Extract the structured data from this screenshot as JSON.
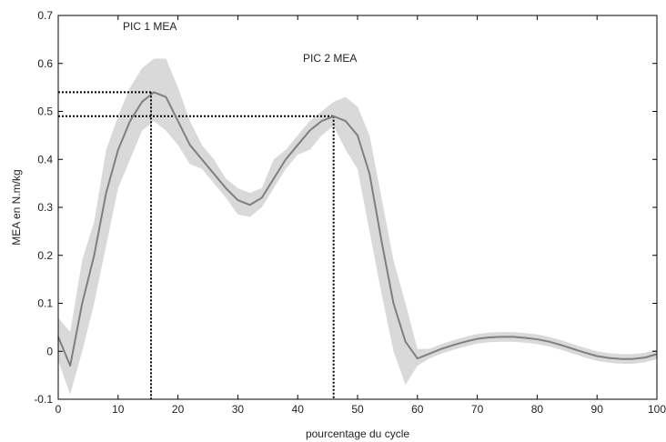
{
  "chart_data": {
    "type": "line",
    "title": "",
    "xlabel": "pourcentage du cycle",
    "ylabel": "MEA en N.m/kg",
    "xlim": [
      0,
      100
    ],
    "ylim": [
      -0.1,
      0.7
    ],
    "xticks": [
      0,
      10,
      20,
      30,
      40,
      50,
      60,
      70,
      80,
      90,
      100
    ],
    "yticks": [
      -0.1,
      0,
      0.1,
      0.2,
      0.3,
      0.4,
      0.5,
      0.6,
      0.7
    ],
    "grid": false,
    "legend": "none",
    "colors": {
      "mean_line": "#7f7f7f",
      "band": "#d9d9d9",
      "axes": "#000000",
      "reference": "#000000"
    },
    "series": [
      {
        "x": [
          0,
          2,
          4,
          6,
          8,
          10,
          12,
          14,
          16,
          18,
          20,
          22,
          24,
          26,
          28,
          30,
          32,
          34,
          36,
          38,
          40,
          42,
          44,
          46,
          48,
          50,
          52,
          54,
          56,
          58,
          60,
          62,
          64,
          66,
          68,
          70,
          72,
          74,
          76,
          78,
          80,
          82,
          84,
          86,
          88,
          90,
          92,
          94,
          96,
          98,
          100
        ],
        "values": [
          0.03,
          -0.03,
          0.1,
          0.2,
          0.33,
          0.42,
          0.48,
          0.52,
          0.54,
          0.53,
          0.48,
          0.43,
          0.4,
          0.37,
          0.34,
          0.315,
          0.305,
          0.32,
          0.36,
          0.4,
          0.43,
          0.46,
          0.48,
          0.49,
          0.48,
          0.45,
          0.37,
          0.23,
          0.1,
          0.02,
          -0.015,
          -0.005,
          0.005,
          0.013,
          0.02,
          0.026,
          0.029,
          0.03,
          0.03,
          0.028,
          0.025,
          0.02,
          0.013,
          0.005,
          -0.003,
          -0.01,
          -0.014,
          -0.016,
          -0.016,
          -0.013,
          -0.006
        ],
        "lower": [
          -0.02,
          -0.09,
          0.0,
          0.1,
          0.22,
          0.34,
          0.4,
          0.46,
          0.48,
          0.46,
          0.43,
          0.39,
          0.38,
          0.35,
          0.32,
          0.285,
          0.28,
          0.3,
          0.34,
          0.38,
          0.41,
          0.42,
          0.45,
          0.47,
          0.42,
          0.38,
          0.25,
          0.12,
          0.0,
          -0.07,
          -0.03,
          -0.015,
          -0.005,
          0.003,
          0.01,
          0.016,
          0.019,
          0.02,
          0.02,
          0.018,
          0.015,
          0.01,
          0.003,
          -0.005,
          -0.013,
          -0.02,
          -0.024,
          -0.026,
          -0.026,
          -0.023,
          -0.016
        ],
        "upper": [
          0.07,
          0.04,
          0.19,
          0.27,
          0.42,
          0.49,
          0.55,
          0.59,
          0.61,
          0.61,
          0.55,
          0.48,
          0.43,
          0.4,
          0.36,
          0.34,
          0.33,
          0.34,
          0.4,
          0.42,
          0.45,
          0.48,
          0.5,
          0.52,
          0.53,
          0.51,
          0.45,
          0.32,
          0.19,
          0.1,
          0.005,
          0.005,
          0.015,
          0.023,
          0.03,
          0.036,
          0.039,
          0.04,
          0.04,
          0.038,
          0.035,
          0.03,
          0.023,
          0.015,
          0.007,
          0.0,
          -0.004,
          -0.006,
          -0.006,
          -0.003,
          0.004
        ]
      }
    ],
    "reference_lines": [
      {
        "label": "PIC 1 MEA",
        "x": 15.5,
        "y": 0.54
      },
      {
        "label": "PIC 2 MEA",
        "x": 46,
        "y": 0.49
      }
    ]
  }
}
